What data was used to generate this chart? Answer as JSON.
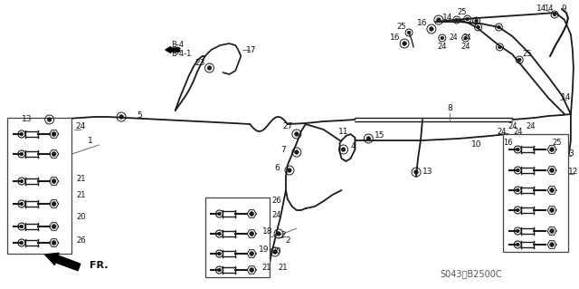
{
  "bg_color": "#ffffff",
  "line_color": "#1a1a1a",
  "text_color": "#111111",
  "part_code": "S043-B2500C",
  "figsize": [
    6.4,
    3.19
  ],
  "dpi": 100
}
